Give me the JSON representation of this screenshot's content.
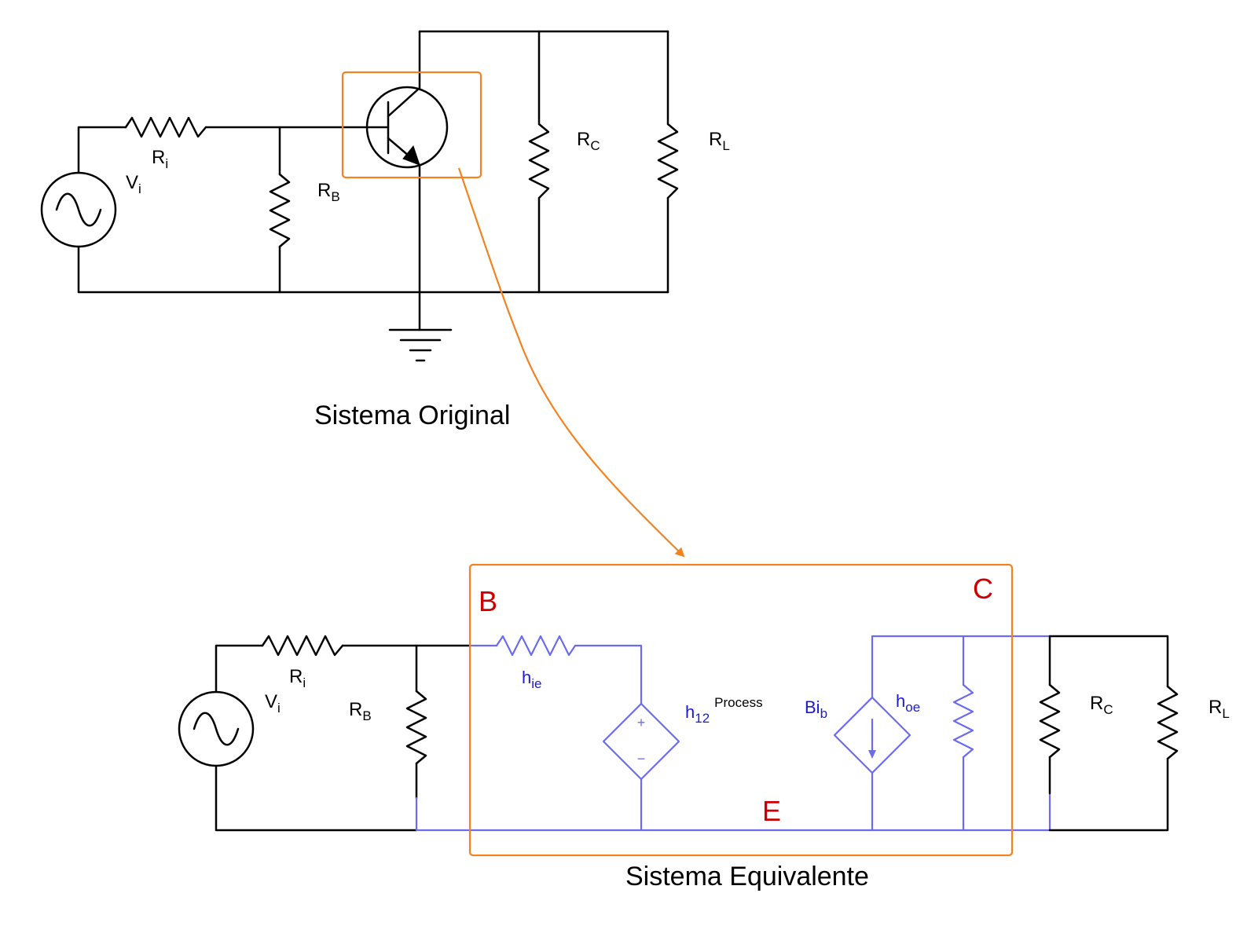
{
  "original": {
    "caption": "Sistema Original",
    "vi": {
      "main": "V",
      "sub": "i"
    },
    "ri": {
      "main": "R",
      "sub": "i"
    },
    "rb": {
      "main": "R",
      "sub": "B"
    },
    "rc": {
      "main": "R",
      "sub": "C"
    },
    "rl": {
      "main": "R",
      "sub": "L"
    }
  },
  "equivalent": {
    "caption": "Sistema Equivalente",
    "vi": {
      "main": "V",
      "sub": "i"
    },
    "ri": {
      "main": "R",
      "sub": "i"
    },
    "rb": {
      "main": "R",
      "sub": "B"
    },
    "rc": {
      "main": "R",
      "sub": "C"
    },
    "rl": {
      "main": "R",
      "sub": "L"
    },
    "hie": {
      "main": "h",
      "sub": "ie"
    },
    "h12": {
      "main": "h",
      "sub": "12",
      "sup": "Process"
    },
    "bib": {
      "main": "Bi",
      "sub": "b"
    },
    "hoe": {
      "main": "h",
      "sub": "oe"
    },
    "node_b": "B",
    "node_c": "C",
    "node_e": "E",
    "plus": "+",
    "minus": "−"
  },
  "colors": {
    "black": "#000000",
    "blue": "#6b6bf0",
    "label_blue": "#1a1ad6",
    "orange": "#f58220",
    "red": "#cc0000"
  }
}
